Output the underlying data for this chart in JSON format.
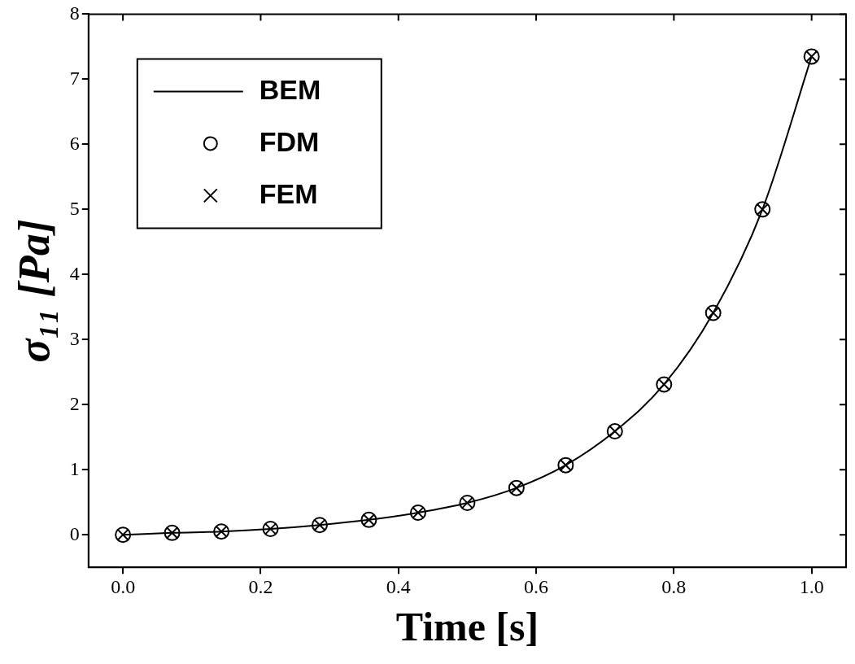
{
  "chart_data": {
    "type": "line",
    "xlabel": "Time [s]",
    "ylabel": "σ₁₁ [Pa]",
    "x": [
      0,
      0.0714,
      0.1429,
      0.2143,
      0.2857,
      0.3571,
      0.4286,
      0.5,
      0.5714,
      0.6429,
      0.7143,
      0.7857,
      0.8571,
      0.9286,
      1
    ],
    "xlim": [
      -0.05,
      1.05
    ],
    "xticks": [
      {
        "value": 0,
        "label": "0.0"
      },
      0.2,
      0.4,
      0.6,
      0.8,
      {
        "value": 1,
        "label": "1.0"
      }
    ],
    "ylim": [
      -0.5,
      8
    ],
    "yticks": [
      0,
      1,
      2,
      3,
      4,
      5,
      6,
      7,
      8
    ],
    "grid": false,
    "legend": "top left",
    "series": [
      {
        "name": "BEM",
        "color": "#000000",
        "marker": "none",
        "line_style": "solid",
        "values": [
          0,
          0.03,
          0.05,
          0.09,
          0.15,
          0.23,
          0.34,
          0.49,
          0.72,
          1.07,
          1.59,
          2.31,
          3.41,
          5.0,
          7.35
        ]
      },
      {
        "name": "FDM",
        "type": "scatter",
        "color": "#000000",
        "marker": "circle",
        "values": [
          0,
          0.03,
          0.05,
          0.09,
          0.15,
          0.23,
          0.34,
          0.49,
          0.72,
          1.07,
          1.59,
          2.31,
          3.41,
          5.0,
          7.35
        ]
      },
      {
        "name": "FEM",
        "type": "scatter",
        "color": "#000000",
        "marker": "cross",
        "values": [
          0,
          0.03,
          0.05,
          0.09,
          0.15,
          0.23,
          0.34,
          0.49,
          0.72,
          1.07,
          1.59,
          2.31,
          3.41,
          5.0,
          7.35
        ]
      }
    ]
  }
}
